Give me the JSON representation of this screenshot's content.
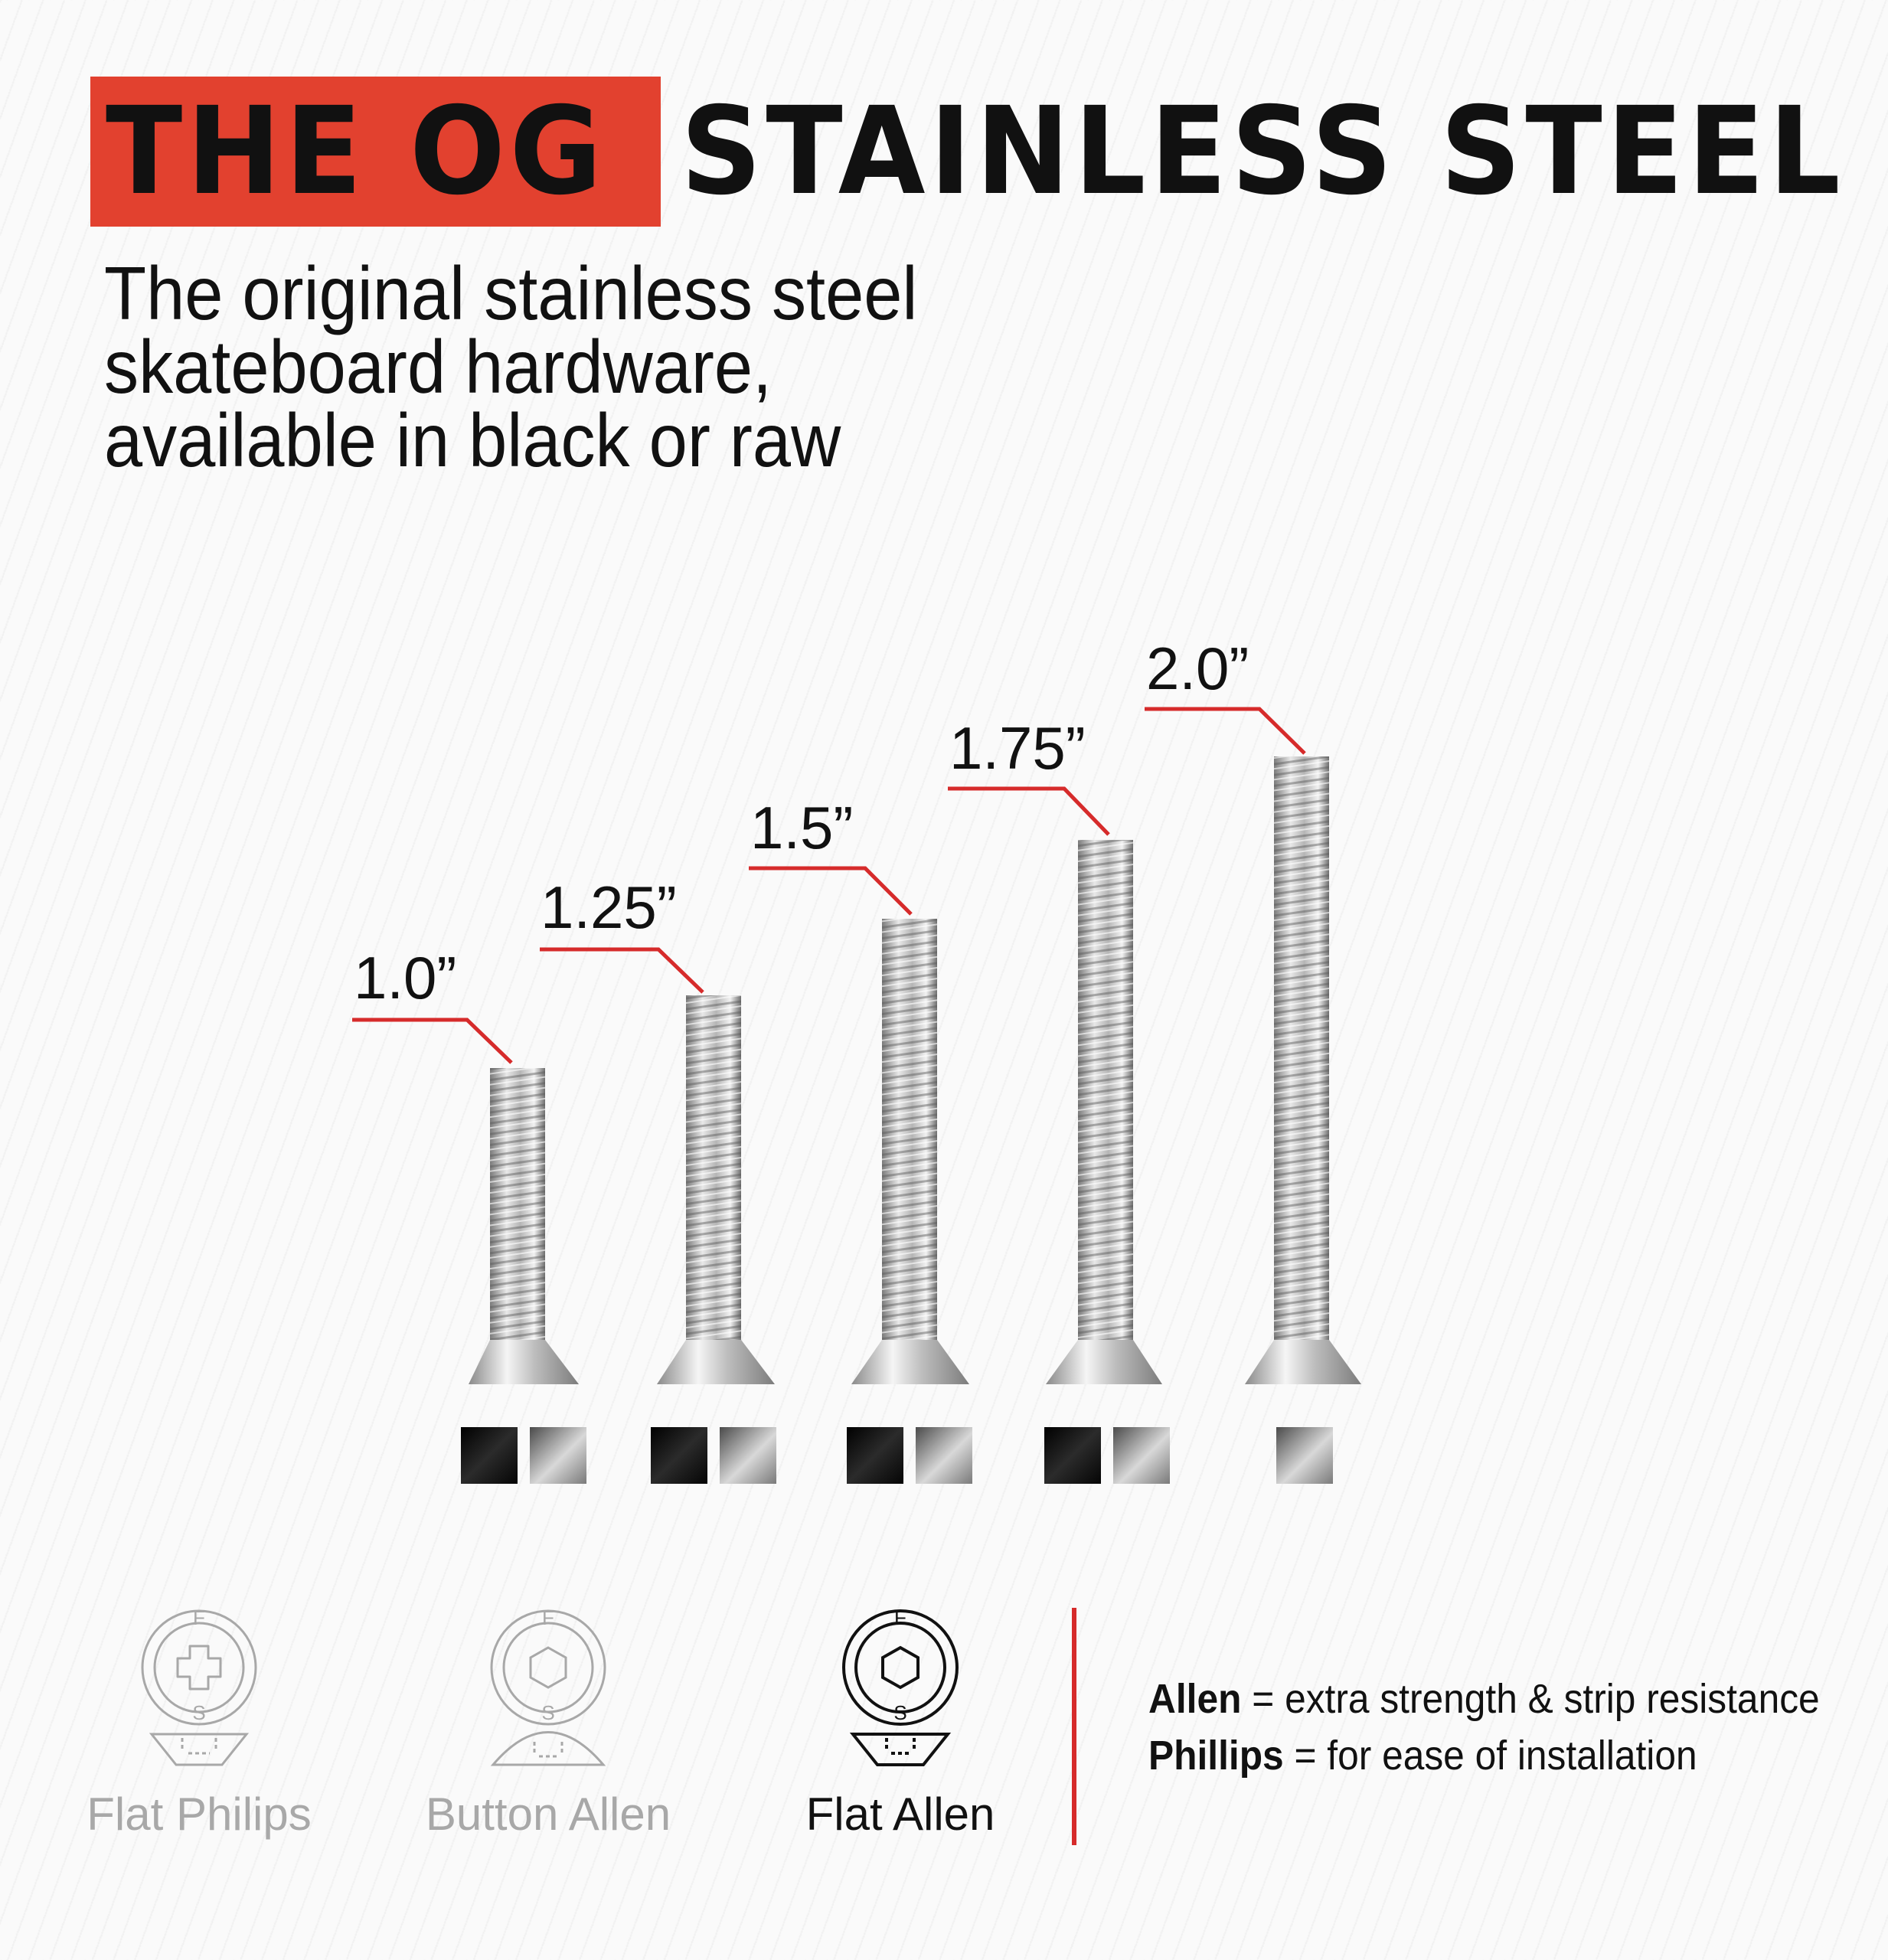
{
  "header": {
    "highlight": "THE OG",
    "rest": "STAINLESS STEEL",
    "highlight_color": "#e2412f"
  },
  "subtitle": {
    "line1": "The original stainless steel",
    "line2": "skateboard hardware,",
    "line3": "available in black or raw"
  },
  "screws": [
    {
      "length": "1.0”",
      "finishes": [
        "black",
        "raw"
      ]
    },
    {
      "length": "1.25”",
      "finishes": [
        "black",
        "raw"
      ]
    },
    {
      "length": "1.5”",
      "finishes": [
        "black",
        "raw"
      ]
    },
    {
      "length": "1.75”",
      "finishes": [
        "black",
        "raw"
      ]
    },
    {
      "length": "2.0”",
      "finishes": [
        "raw"
      ]
    }
  ],
  "screw_types": [
    {
      "label": "Flat Philips",
      "icon": "phillips-flat-head-icon",
      "active": false
    },
    {
      "label": "Button Allen",
      "icon": "allen-button-head-icon",
      "active": false
    },
    {
      "label": "Flat Allen",
      "icon": "allen-flat-head-icon",
      "active": true
    }
  ],
  "head_letters": {
    "top": "F",
    "bottom": "S"
  },
  "legend": {
    "allen_term": "Allen",
    "allen_desc": " =  extra strength & strip resistance",
    "phillips_term": "Phillips",
    "phillips_desc": " = for ease of installation"
  },
  "colors": {
    "accent_red": "#d62b2b",
    "inactive_grey": "#a8a8a8"
  }
}
